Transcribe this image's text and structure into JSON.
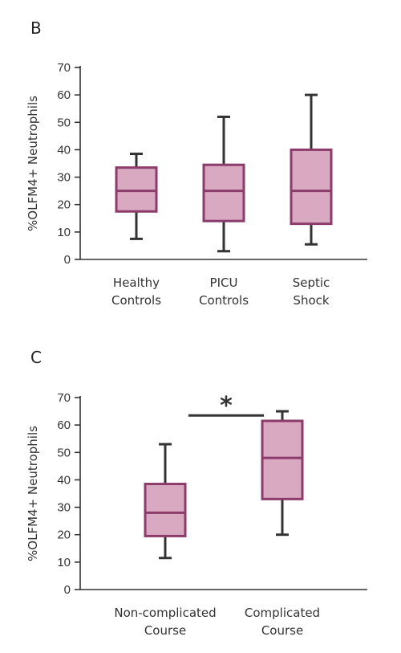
{
  "colors": {
    "box_fill": "#d9a9c2",
    "box_stroke": "#8c3c6b",
    "whisker": "#333333",
    "axis": "#333333"
  },
  "chart_data": [
    {
      "panel": "B",
      "type": "box",
      "ylabel": "%OLFM4+ Neutrophils",
      "ylim": [
        0,
        70
      ],
      "yticks": [
        0,
        10,
        20,
        30,
        40,
        50,
        60,
        70
      ],
      "categories": [
        [
          "Healthy",
          "Controls"
        ],
        [
          "PICU",
          "Controls"
        ],
        [
          "Septic",
          "Shock"
        ]
      ],
      "boxes": [
        {
          "min": 7.5,
          "q1": 17.5,
          "median": 25,
          "q3": 33.5,
          "max": 38.5
        },
        {
          "min": 3,
          "q1": 14,
          "median": 25,
          "q3": 34.5,
          "max": 52
        },
        {
          "min": 5.5,
          "q1": 13,
          "median": 25,
          "q3": 40,
          "max": 60
        }
      ],
      "grid": false
    },
    {
      "panel": "C",
      "type": "box",
      "ylabel": "%OLFM4+ Neutrophils",
      "ylim": [
        0,
        70
      ],
      "yticks": [
        0,
        10,
        20,
        30,
        40,
        50,
        60,
        70
      ],
      "categories": [
        [
          "Non-complicated",
          "Course"
        ],
        [
          "Complicated",
          "Course"
        ]
      ],
      "boxes": [
        {
          "min": 11.5,
          "q1": 19.5,
          "median": 28,
          "q3": 38.5,
          "max": 53
        },
        {
          "min": 20,
          "q1": 33,
          "median": 48,
          "q3": 61.5,
          "max": 65
        }
      ],
      "significance": {
        "marker": "*",
        "between": [
          0,
          1
        ],
        "y": 63.5
      },
      "grid": false
    }
  ]
}
